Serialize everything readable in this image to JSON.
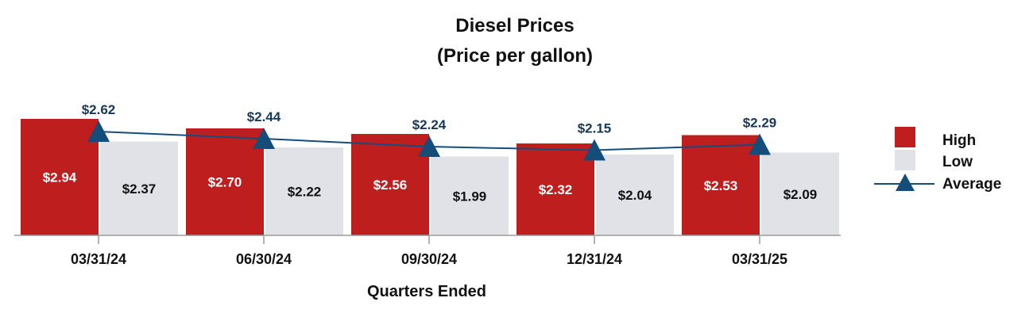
{
  "chart_data": {
    "type": "bar",
    "title": "Diesel Prices",
    "subtitle": "(Price per gallon)",
    "xlabel": "Quarters Ended",
    "ylabel": "",
    "categories": [
      "03/31/24",
      "06/30/24",
      "09/30/24",
      "12/31/24",
      "03/31/25"
    ],
    "series": [
      {
        "name": "High",
        "kind": "bar",
        "color": "#BF1E1E",
        "label_color": "#FFFFFF",
        "values": [
          2.94,
          2.7,
          2.56,
          2.32,
          2.53
        ],
        "labels": [
          "$2.94",
          "$2.70",
          "$2.56",
          "$2.32",
          "$2.53"
        ]
      },
      {
        "name": "Low",
        "kind": "bar",
        "color": "#E1E2E8",
        "label_color": "#111111",
        "values": [
          2.37,
          2.22,
          1.99,
          2.04,
          2.09
        ],
        "labels": [
          "$2.37",
          "$2.22",
          "$1.99",
          "$2.04",
          "$2.09"
        ]
      },
      {
        "name": "Average",
        "kind": "line",
        "color": "#154D7A",
        "label_color": "#15385C",
        "values": [
          2.62,
          2.44,
          2.24,
          2.15,
          2.29
        ],
        "labels": [
          "$2.62",
          "$2.44",
          "$2.24",
          "$2.15",
          "$2.29"
        ]
      }
    ],
    "ylim": [
      0,
      3.0
    ],
    "grid": false,
    "legend_position": "right"
  }
}
